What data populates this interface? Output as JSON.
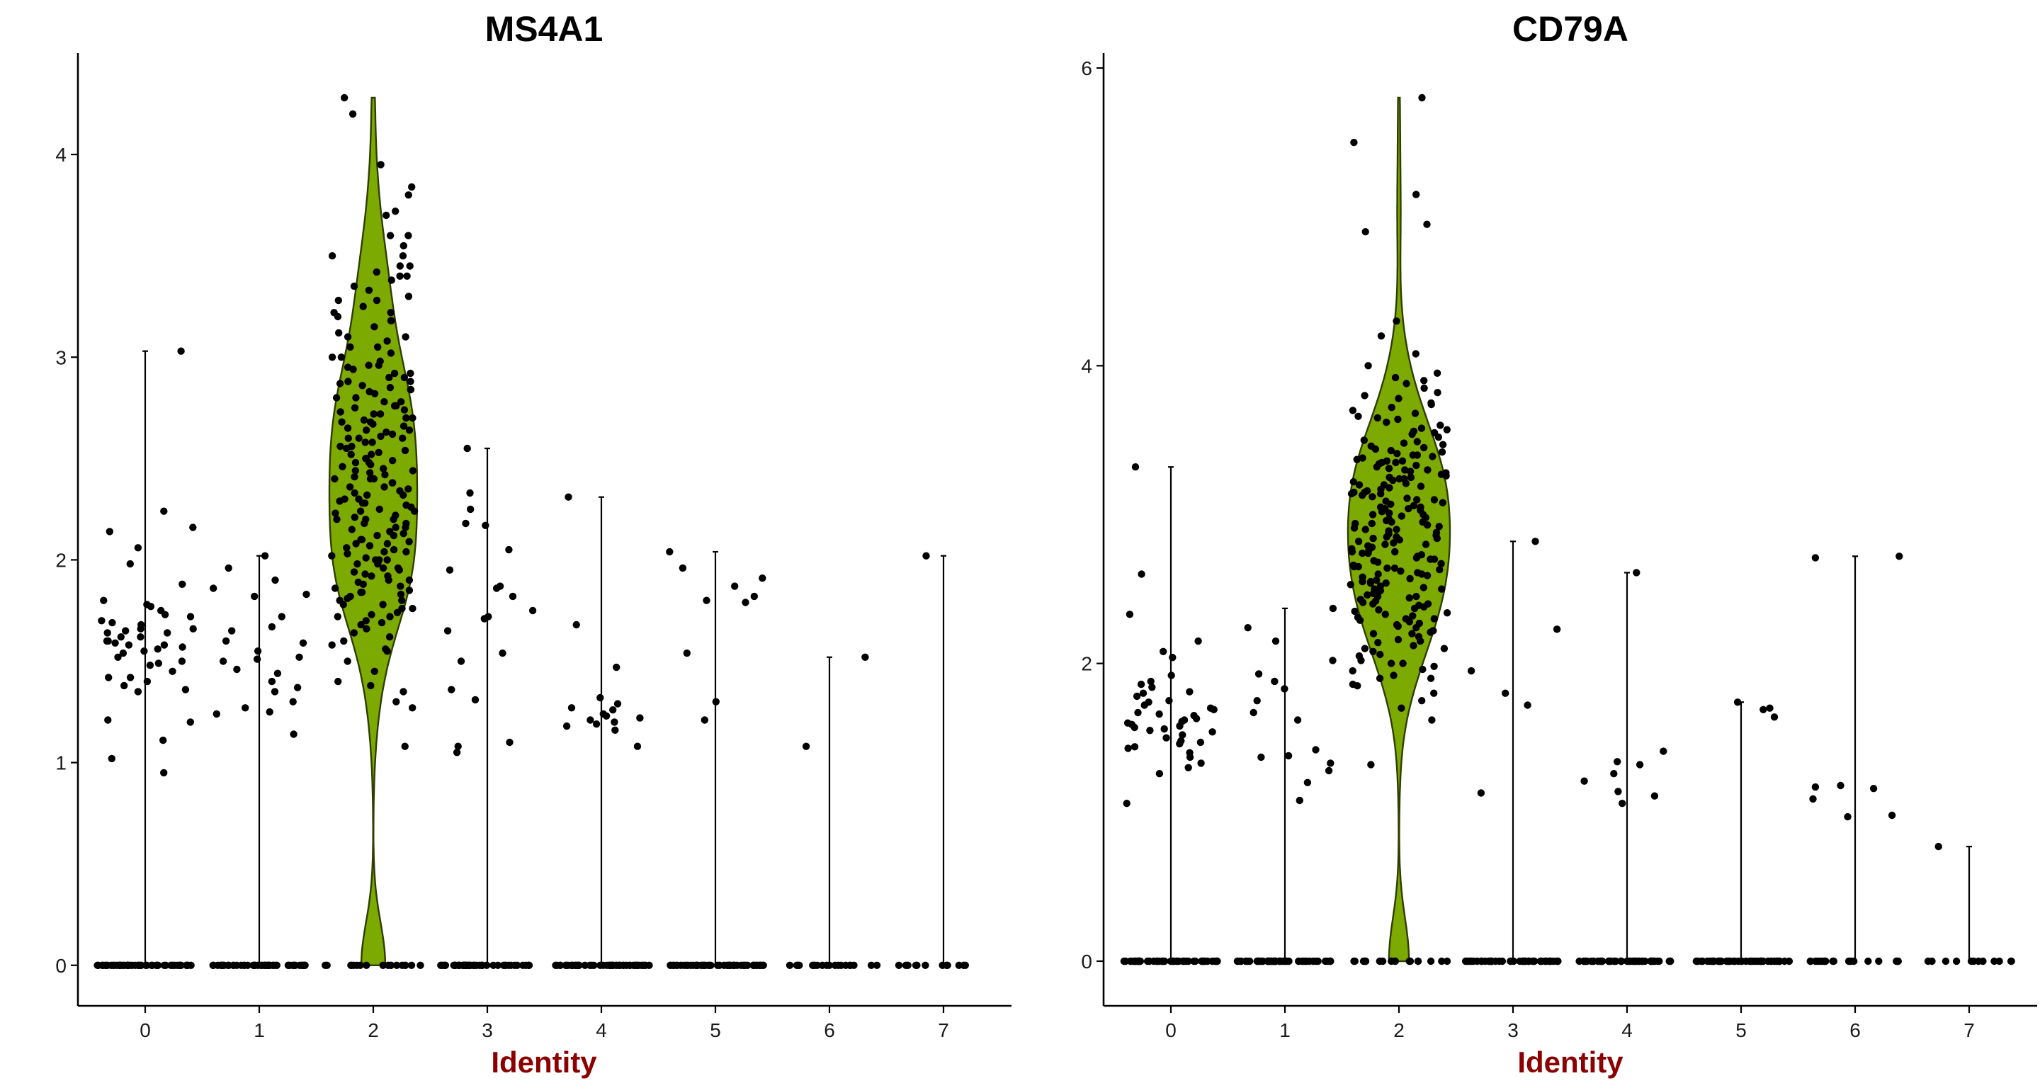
{
  "chart_data": [
    {
      "type": "violin",
      "title": "MS4A1",
      "xlabel": "Identity",
      "ylabel": "",
      "categories": [
        "0",
        "1",
        "2",
        "3",
        "4",
        "5",
        "6",
        "7"
      ],
      "yticks": [
        "0",
        "1",
        "2",
        "3",
        "4"
      ],
      "ylim": [
        -0.2,
        4.5
      ],
      "fill_color": "#7caa00",
      "xlabel_color": "#8b0000",
      "groups": [
        {
          "identity": "0",
          "max": 3.03,
          "zeros": 52,
          "expressed": [
            2.24,
            1.77,
            1.58,
            1.49,
            1.42,
            1.2,
            1.11,
            1.02,
            0.95,
            1.66,
            1.73,
            1.88,
            1.98,
            2.14,
            1.8,
            1.64,
            1.6,
            1.56,
            1.52,
            1.48,
            1.42,
            1.38,
            1.68,
            1.72,
            1.62,
            1.55,
            1.5,
            1.58,
            1.65,
            1.7,
            1.6,
            1.45,
            1.4,
            1.35,
            2.16,
            2.06,
            1.21,
            1.54,
            1.57,
            1.62,
            1.66,
            1.75,
            1.36,
            1.69,
            1.64,
            3.03,
            1.78,
            1.59
          ]
        },
        {
          "identity": "1",
          "max": 2.02,
          "zeros": 52,
          "expressed": [
            2.02,
            1.51,
            1.35,
            1.3,
            1.24,
            1.14,
            1.83,
            1.86,
            1.67,
            1.5,
            1.44,
            1.4,
            1.27,
            1.55,
            1.59,
            1.65,
            1.72,
            1.82,
            1.96,
            1.25,
            1.6,
            1.37,
            1.46,
            1.52,
            1.9
          ]
        },
        {
          "identity": "2",
          "max": 4.28,
          "zeros": 18,
          "expressed": [
            4.28,
            4.2,
            3.95,
            3.84,
            3.8,
            3.72,
            3.6,
            3.55,
            3.5,
            3.45,
            3.4,
            3.33,
            3.28,
            3.22,
            3.18,
            3.1,
            3.05,
            3.0,
            2.96,
            2.92,
            2.88,
            2.84,
            2.8,
            2.76,
            2.72,
            2.68,
            2.64,
            2.6,
            2.56,
            2.52,
            2.48,
            2.44,
            2.4,
            2.36,
            2.32,
            2.28,
            2.24,
            2.2,
            2.16,
            2.12,
            2.08,
            2.04,
            2.0,
            1.96,
            1.92,
            1.88,
            1.84,
            1.8,
            1.76,
            1.72,
            1.68,
            1.64,
            1.6,
            1.55,
            1.5,
            1.45,
            1.4,
            1.35,
            1.08,
            1.3,
            1.38,
            1.27,
            2.9,
            2.7,
            2.5,
            2.3,
            2.1,
            3.2,
            3.35,
            3.45,
            3.0,
            2.8,
            2.6,
            2.4,
            2.2,
            2.0,
            1.9,
            2.95,
            2.85,
            2.75,
            2.65,
            2.55,
            2.45,
            2.35,
            2.25,
            2.15,
            2.05,
            1.95,
            1.85,
            3.3,
            3.15,
            3.25,
            2.9,
            2.7,
            2.6,
            2.5,
            2.4,
            2.3,
            2.2,
            2.1,
            2.0,
            1.9,
            1.8,
            1.7,
            3.5,
            3.6,
            3.7,
            2.78,
            2.58,
            2.38,
            2.18,
            1.98,
            1.78,
            2.88,
            2.68,
            2.48,
            2.28,
            2.08,
            3.05,
            3.12,
            3.38,
            2.82,
            2.62,
            2.42,
            2.22,
            2.02,
            1.82,
            1.62,
            2.98,
            2.72,
            2.52,
            2.32,
            2.12,
            1.92,
            1.72,
            3.42,
            3.28,
            3.08,
            2.86,
            2.66,
            2.46,
            2.26,
            2.06,
            1.86,
            1.66,
            3.22,
            2.92,
            2.74,
            2.54,
            2.34,
            2.14,
            1.94,
            1.74,
            1.56,
            2.94,
            2.84,
            2.64,
            2.44,
            2.24,
            2.04,
            1.84,
            3.02,
            2.78,
            2.58,
            2.38,
            2.18,
            1.98,
            1.78,
            1.58,
            3.18,
            2.96,
            2.76,
            2.56,
            2.36,
            2.16,
            1.96,
            1.76,
            2.87,
            2.67,
            2.47,
            2.27,
            2.07,
            1.87,
            3.4,
            3.1,
            2.83,
            2.63,
            2.43,
            2.23,
            2.03,
            1.83,
            2.73,
            2.53,
            2.33,
            2.13,
            1.93,
            1.73,
            2.69,
            2.49,
            2.29,
            2.09,
            1.89,
            1.69,
            2.61,
            2.41,
            2.21,
            2.01,
            1.81
          ]
        },
        {
          "identity": "3",
          "max": 2.55,
          "zeros": 52,
          "expressed": [
            2.55,
            2.33,
            2.25,
            2.18,
            2.17,
            1.87,
            1.86,
            1.82,
            1.72,
            1.71,
            1.54,
            1.36,
            1.31,
            1.08,
            1.1,
            1.05,
            1.75,
            1.65,
            1.95,
            2.05,
            1.5
          ]
        },
        {
          "identity": "4",
          "max": 2.31,
          "zeros": 52,
          "expressed": [
            2.31,
            1.68,
            1.47,
            1.32,
            1.27,
            1.24,
            1.22,
            1.2,
            1.19,
            1.18,
            1.16,
            1.08,
            1.21,
            1.23,
            1.26,
            1.29
          ]
        },
        {
          "identity": "5",
          "max": 2.04,
          "zeros": 52,
          "expressed": [
            2.04,
            1.96,
            1.91,
            1.87,
            1.82,
            1.8,
            1.54,
            1.3,
            1.21,
            1.79
          ]
        },
        {
          "identity": "6",
          "max": 1.52,
          "zeros": 20,
          "expressed": [
            1.52,
            1.08
          ]
        },
        {
          "identity": "7",
          "max": 2.02,
          "zeros": 12,
          "expressed": [
            2.02
          ]
        }
      ]
    },
    {
      "type": "violin",
      "title": "CD79A",
      "xlabel": "Identity",
      "ylabel": "",
      "categories": [
        "0",
        "1",
        "2",
        "3",
        "4",
        "5",
        "6",
        "7"
      ],
      "yticks": [
        "0",
        "2",
        "4",
        "6"
      ],
      "ylim": [
        -0.3,
        6.1
      ],
      "fill_color": "#7caa00",
      "xlabel_color": "#8b0000",
      "groups": [
        {
          "identity": "0",
          "max": 3.32,
          "zeros": 52,
          "expressed": [
            3.32,
            2.6,
            2.33,
            2.15,
            2.04,
            1.92,
            1.86,
            1.84,
            1.81,
            1.78,
            1.74,
            1.72,
            1.69,
            1.66,
            1.63,
            1.6,
            1.58,
            1.56,
            1.54,
            1.52,
            1.5,
            1.48,
            1.46,
            1.43,
            1.4,
            1.37,
            1.33,
            1.3,
            1.26,
            1.06,
            1.7,
            1.65,
            1.55,
            1.62,
            1.75,
            1.59,
            1.47,
            1.8,
            2.08,
            1.88,
            1.44,
            1.57,
            1.67,
            1.61
          ]
        },
        {
          "identity": "1",
          "max": 2.37,
          "zeros": 52,
          "expressed": [
            2.37,
            2.24,
            2.15,
            2.02,
            1.93,
            1.88,
            1.83,
            1.67,
            1.62,
            1.42,
            1.37,
            1.33,
            1.28,
            1.2,
            1.08,
            1.38,
            1.75
          ]
        },
        {
          "identity": "2",
          "max": 5.8,
          "zeros": 18,
          "expressed": [
            5.8,
            5.5,
            5.15,
            4.95,
            4.9,
            4.3,
            4.2,
            4.08,
            4.0,
            3.95,
            3.9,
            3.85,
            3.8,
            3.75,
            3.7,
            3.65,
            3.6,
            3.55,
            3.5,
            3.45,
            3.4,
            3.35,
            3.3,
            3.25,
            3.2,
            3.15,
            3.1,
            3.05,
            3.0,
            2.95,
            2.9,
            2.85,
            2.8,
            2.75,
            2.7,
            2.65,
            2.6,
            2.55,
            2.5,
            2.45,
            2.4,
            2.35,
            2.3,
            2.25,
            2.2,
            2.15,
            2.1,
            2.05,
            2.0,
            1.95,
            1.9,
            1.85,
            1.8,
            1.75,
            1.7,
            1.62,
            1.32,
            3.42,
            3.38,
            3.28,
            3.18,
            3.08,
            2.98,
            2.88,
            2.78,
            2.68,
            2.58,
            2.48,
            2.38,
            2.28,
            2.18,
            2.08,
            1.98,
            3.48,
            3.36,
            3.26,
            3.16,
            3.06,
            2.96,
            2.86,
            2.76,
            2.66,
            2.56,
            2.46,
            2.36,
            2.26,
            2.16,
            2.06,
            1.96,
            1.86,
            3.52,
            3.32,
            3.22,
            3.12,
            3.02,
            2.92,
            2.82,
            2.72,
            2.62,
            2.52,
            2.42,
            2.32,
            2.22,
            2.12,
            2.02,
            1.92,
            3.58,
            3.44,
            3.34,
            3.24,
            3.14,
            3.04,
            2.94,
            2.84,
            2.74,
            2.64,
            2.54,
            2.44,
            2.34,
            2.24,
            2.14,
            3.62,
            3.46,
            3.37,
            3.27,
            3.17,
            3.07,
            2.97,
            2.87,
            2.77,
            2.67,
            2.57,
            2.47,
            2.37,
            2.27,
            3.68,
            3.41,
            3.31,
            3.21,
            3.11,
            3.01,
            2.91,
            2.81,
            2.71,
            2.61,
            2.51,
            2.41,
            2.31,
            2.21,
            3.72,
            3.56,
            3.39,
            3.29,
            3.19,
            3.09,
            2.99,
            2.89,
            2.79,
            2.69,
            2.59,
            2.49,
            2.39,
            2.29,
            3.78,
            3.54,
            3.43,
            3.33,
            3.23,
            3.13,
            3.03,
            2.93,
            2.83,
            2.73,
            2.63,
            2.53,
            2.43,
            2.33,
            3.82,
            3.64,
            3.47,
            3.35,
            3.25,
            3.15,
            3.05,
            2.95,
            2.85,
            2.75,
            2.65,
            2.55,
            2.45,
            3.88,
            3.66,
            3.49,
            3.36,
            3.24,
            3.14,
            3.04,
            2.94,
            2.84,
            2.74,
            2.64,
            2.54,
            3.92,
            3.74,
            3.57,
            3.4,
            3.3,
            3.2,
            3.1,
            3.0,
            2.9,
            2.8,
            2.7,
            2.6,
            2.5,
            2.4,
            2.3,
            2.2,
            2.1,
            2.0,
            1.9
          ]
        },
        {
          "identity": "3",
          "max": 2.82,
          "zeros": 52,
          "expressed": [
            2.82,
            2.23,
            1.95,
            1.8,
            1.72,
            1.13
          ]
        },
        {
          "identity": "4",
          "max": 2.61,
          "zeros": 52,
          "expressed": [
            2.61,
            1.41,
            1.34,
            1.32,
            1.26,
            1.21,
            1.14,
            1.11,
            1.06
          ]
        },
        {
          "identity": "5",
          "max": 1.74,
          "zeros": 52,
          "expressed": [
            1.74,
            1.7,
            1.69,
            1.64
          ]
        },
        {
          "identity": "6",
          "max": 2.72,
          "zeros": 20,
          "expressed": [
            2.72,
            2.71,
            1.18,
            1.17,
            1.16,
            1.09,
            0.98,
            0.97
          ]
        },
        {
          "identity": "7",
          "max": 0.77,
          "zeros": 12,
          "expressed": [
            0.77
          ]
        }
      ]
    }
  ]
}
